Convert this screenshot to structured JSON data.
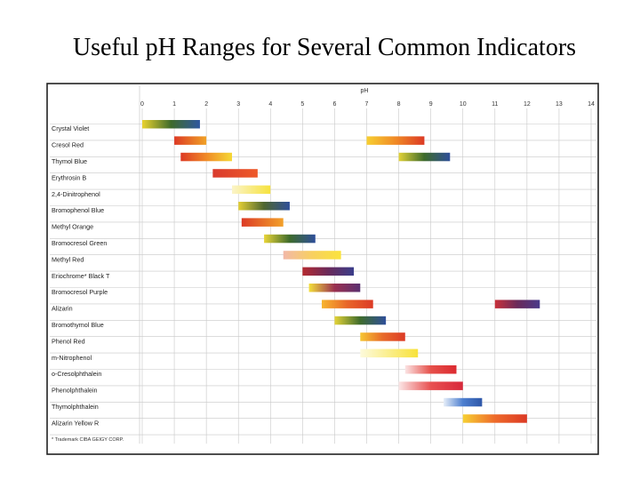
{
  "title": "Useful pH Ranges for Several Common Indicators",
  "chart_data": {
    "type": "bar",
    "subtype": "range",
    "xlabel": "pH",
    "xlim": [
      0,
      14
    ],
    "x_ticks": [
      0,
      1,
      2,
      3,
      4,
      5,
      6,
      7,
      8,
      9,
      10,
      11,
      12,
      13,
      14
    ],
    "grid": true,
    "footnote": "* Trademark CIBA GEIGY CORP.",
    "indicators": [
      {
        "name": "Crystal Violet",
        "ranges": [
          {
            "from": 0.0,
            "to": 1.8,
            "colors": [
              "#e9d230",
              "#3e6b2c",
              "#2f57a0"
            ]
          }
        ]
      },
      {
        "name": "Cresol Red",
        "ranges": [
          {
            "from": 1.0,
            "to": 2.0,
            "colors": [
              "#dd3a25",
              "#f0a226"
            ]
          },
          {
            "from": 7.0,
            "to": 8.8,
            "colors": [
              "#f7cf32",
              "#f08a26",
              "#dc3a25"
            ]
          }
        ]
      },
      {
        "name": "Thymol Blue",
        "ranges": [
          {
            "from": 1.2,
            "to": 2.8,
            "colors": [
              "#dd3a25",
              "#f08a26",
              "#f5d836"
            ]
          },
          {
            "from": 8.0,
            "to": 9.6,
            "colors": [
              "#e2d238",
              "#3e6b2c",
              "#2f4f9a"
            ]
          }
        ]
      },
      {
        "name": "Erythrosin B",
        "ranges": [
          {
            "from": 2.2,
            "to": 3.6,
            "colors": [
              "#d93a2c",
              "#ee5a2a"
            ]
          }
        ]
      },
      {
        "name": "2,4-Dinitrophenol",
        "ranges": [
          {
            "from": 2.8,
            "to": 4.0,
            "colors": [
              "#fbf4c8",
              "#f6e23e"
            ]
          }
        ]
      },
      {
        "name": "Bromophenol Blue",
        "ranges": [
          {
            "from": 3.0,
            "to": 4.6,
            "colors": [
              "#e3cf35",
              "#4e6630",
              "#2f4f9a"
            ]
          }
        ]
      },
      {
        "name": "Methyl Orange",
        "ranges": [
          {
            "from": 3.1,
            "to": 4.4,
            "colors": [
              "#dc3a25",
              "#f2a12a"
            ]
          }
        ]
      },
      {
        "name": "Bromocresol Green",
        "ranges": [
          {
            "from": 3.8,
            "to": 5.4,
            "colors": [
              "#e8d438",
              "#3e6b2c",
              "#2f4f9a"
            ]
          }
        ]
      },
      {
        "name": "Methyl Red",
        "ranges": [
          {
            "from": 4.4,
            "to": 6.2,
            "colors": [
              "#f2b8a8",
              "#f8d060",
              "#fae33c"
            ]
          }
        ]
      },
      {
        "name": "Eriochrome* Black T",
        "ranges": [
          {
            "from": 5.0,
            "to": 6.6,
            "colors": [
              "#b42a30",
              "#6a2a5a",
              "#3a3d8a"
            ]
          }
        ]
      },
      {
        "name": "Bromocresol Purple",
        "ranges": [
          {
            "from": 5.2,
            "to": 6.8,
            "colors": [
              "#f3df3a",
              "#9a3050",
              "#5a3070"
            ]
          }
        ]
      },
      {
        "name": "Alizarin",
        "ranges": [
          {
            "from": 5.6,
            "to": 7.2,
            "colors": [
              "#f7b530",
              "#e86528",
              "#dc3a25"
            ]
          },
          {
            "from": 11.0,
            "to": 12.4,
            "colors": [
              "#c8303a",
              "#6a2a5a",
              "#4a3a8a"
            ]
          }
        ]
      },
      {
        "name": "Bromothymol Blue",
        "ranges": [
          {
            "from": 6.0,
            "to": 7.6,
            "colors": [
              "#e3d338",
              "#3e6b2c",
              "#2f4f9a"
            ]
          }
        ]
      },
      {
        "name": "Phenol Red",
        "ranges": [
          {
            "from": 6.8,
            "to": 8.2,
            "colors": [
              "#f6c632",
              "#e86a28",
              "#dc3a25"
            ]
          }
        ]
      },
      {
        "name": "m-Nitrophenol",
        "ranges": [
          {
            "from": 6.8,
            "to": 8.6,
            "colors": [
              "#fdfadc",
              "#f8e23a"
            ]
          }
        ]
      },
      {
        "name": "o-Cresolphthalein",
        "ranges": [
          {
            "from": 8.2,
            "to": 9.8,
            "colors": [
              "#fbe4e4",
              "#e6504a",
              "#dc2a30"
            ]
          }
        ]
      },
      {
        "name": "Phenolphthalein",
        "ranges": [
          {
            "from": 8.0,
            "to": 10.0,
            "colors": [
              "#fbe6e6",
              "#e85050",
              "#d8283a"
            ]
          }
        ]
      },
      {
        "name": "Thymolphthalein",
        "ranges": [
          {
            "from": 9.4,
            "to": 10.6,
            "colors": [
              "#e6eef8",
              "#4d7fd0",
              "#2e57a8"
            ]
          }
        ]
      },
      {
        "name": "Alizarin Yellow R",
        "ranges": [
          {
            "from": 10.0,
            "to": 12.0,
            "colors": [
              "#f7d033",
              "#ee6a2a",
              "#dc3a25"
            ]
          }
        ]
      }
    ]
  }
}
